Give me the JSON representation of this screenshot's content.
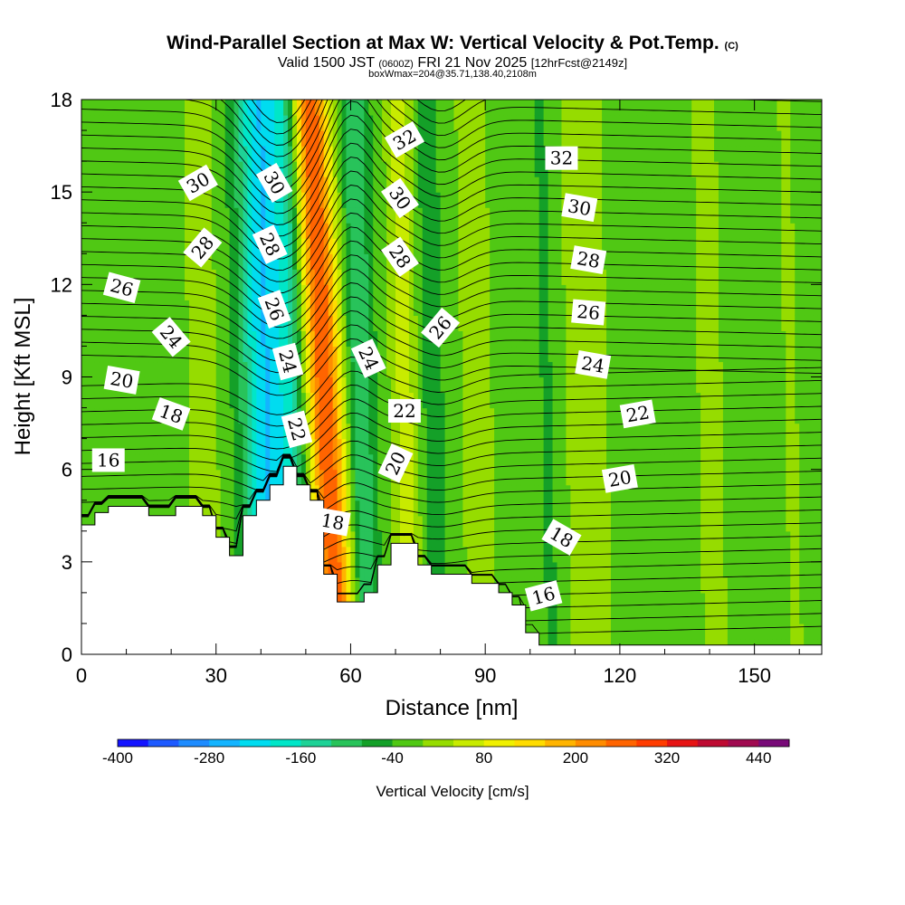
{
  "header": {
    "title": "Wind-Parallel Section at Max W: Vertical Velocity & Pot.Temp.",
    "title_tag": "(C)",
    "valid_prefix": "Valid 1500 JST",
    "valid_utc": "(0600Z)",
    "valid_date": "FRI 21 Nov 2025",
    "forecast": "[12hrFcst@2149z]",
    "box_info": "boxWmax=204@35.71,138.40,2108m"
  },
  "chart_data": {
    "type": "heatmap",
    "xlabel": "Distance [nm]",
    "ylabel": "Height [Kft MSL]",
    "xlim": [
      0,
      165
    ],
    "ylim": [
      0,
      18
    ],
    "xticks": [
      0,
      30,
      60,
      90,
      120,
      150
    ],
    "yticks": [
      0,
      3,
      6,
      9,
      12,
      15,
      18
    ],
    "colorbar": {
      "label": "Vertical Velocity [cm/s]",
      "min": -400,
      "max": 480,
      "step": 40,
      "tick_values": [
        -400,
        -280,
        -160,
        -40,
        80,
        200,
        320,
        440
      ],
      "colors": [
        "#1414ff",
        "#1e5aff",
        "#1e8cff",
        "#14b4ff",
        "#00dcf0",
        "#00e6c8",
        "#1ed296",
        "#28c35a",
        "#14a028",
        "#50c814",
        "#96dc00",
        "#c8eb00",
        "#f0f000",
        "#ffdc00",
        "#ffb400",
        "#ff8c00",
        "#ff6400",
        "#ff3c00",
        "#e61414",
        "#be0a32",
        "#a00a50",
        "#780a78"
      ]
    },
    "terrain_profile": {
      "distance_nm": [
        0,
        3,
        3,
        6,
        6,
        15,
        15,
        21,
        21,
        27,
        27,
        30,
        30,
        33,
        33,
        36,
        36,
        39,
        39,
        42,
        42,
        45,
        45,
        48,
        48,
        51,
        51,
        54,
        54,
        57,
        57,
        60,
        60,
        63,
        63,
        66,
        66,
        69,
        69,
        72,
        72,
        75,
        75,
        78,
        78,
        81,
        81,
        84,
        84,
        87,
        87,
        90,
        90,
        93,
        93,
        96,
        96,
        99,
        99,
        102,
        102,
        105,
        105,
        165
      ],
      "height_kft": [
        4.2,
        4.2,
        4.6,
        4.6,
        4.8,
        4.8,
        4.5,
        4.5,
        4.8,
        4.8,
        4.5,
        4.5,
        3.8,
        3.8,
        3.2,
        3.2,
        4.5,
        4.5,
        5.0,
        5.0,
        5.5,
        5.5,
        6.1,
        6.1,
        5.5,
        5.5,
        5.0,
        5.0,
        2.6,
        2.6,
        1.7,
        1.7,
        1.7,
        1.7,
        2.0,
        2.0,
        2.9,
        2.9,
        3.6,
        3.6,
        3.6,
        3.6,
        2.9,
        2.9,
        2.6,
        2.6,
        2.6,
        2.6,
        2.6,
        2.6,
        2.3,
        2.3,
        2.3,
        2.3,
        2.0,
        2.0,
        1.6,
        1.6,
        0.7,
        0.7,
        0.3,
        0.3,
        0.3,
        0.3
      ]
    },
    "vertical_velocity_bands": [
      {
        "center_nm": 27,
        "half_width_nm": 3,
        "w_cms": 60
      },
      {
        "center_nm": 41,
        "half_width_nm": 5,
        "w_cms": -220
      },
      {
        "center_nm": 47,
        "half_width_nm": 3,
        "w_cms": -90
      },
      {
        "center_nm": 54,
        "half_width_nm": 4,
        "w_cms": 300
      },
      {
        "center_nm": 62,
        "half_width_nm": 3,
        "w_cms": -100
      },
      {
        "center_nm": 72,
        "half_width_nm": 3,
        "w_cms": 80
      },
      {
        "center_nm": 78,
        "half_width_nm": 3,
        "w_cms": -40
      },
      {
        "center_nm": 88,
        "half_width_nm": 4,
        "w_cms": 40
      },
      {
        "center_nm": 104,
        "half_width_nm": 3,
        "w_cms": -30
      },
      {
        "center_nm": 112,
        "half_width_nm": 6,
        "w_cms": 40
      },
      {
        "center_nm": 140,
        "half_width_nm": 4,
        "w_cms": 30
      },
      {
        "center_nm": 158,
        "half_width_nm": 2,
        "w_cms": 30
      }
    ],
    "theta_contour_labels": [
      {
        "value": "16",
        "x_nm": 6,
        "y_kft": 6.3,
        "angle": 0
      },
      {
        "value": "18",
        "x_nm": 20,
        "y_kft": 7.8,
        "angle": 20
      },
      {
        "value": "20",
        "x_nm": 9,
        "y_kft": 8.9,
        "angle": 10
      },
      {
        "value": "24",
        "x_nm": 20,
        "y_kft": 10.3,
        "angle": 50
      },
      {
        "value": "26",
        "x_nm": 9,
        "y_kft": 11.9,
        "angle": 15
      },
      {
        "value": "28",
        "x_nm": 27,
        "y_kft": 13.2,
        "angle": -50
      },
      {
        "value": "30",
        "x_nm": 26,
        "y_kft": 15.3,
        "angle": -30
      },
      {
        "value": "30",
        "x_nm": 43,
        "y_kft": 15.3,
        "angle": 60
      },
      {
        "value": "28",
        "x_nm": 42,
        "y_kft": 13.3,
        "angle": 65
      },
      {
        "value": "26",
        "x_nm": 43,
        "y_kft": 11.2,
        "angle": 70
      },
      {
        "value": "24",
        "x_nm": 46,
        "y_kft": 9.5,
        "angle": 75
      },
      {
        "value": "22",
        "x_nm": 48,
        "y_kft": 7.3,
        "angle": 75
      },
      {
        "value": "18",
        "x_nm": 56,
        "y_kft": 4.3,
        "angle": 10
      },
      {
        "value": "32",
        "x_nm": 72,
        "y_kft": 16.7,
        "angle": -30
      },
      {
        "value": "30",
        "x_nm": 71,
        "y_kft": 14.8,
        "angle": 55
      },
      {
        "value": "28",
        "x_nm": 71,
        "y_kft": 12.9,
        "angle": 55
      },
      {
        "value": "24",
        "x_nm": 64,
        "y_kft": 9.6,
        "angle": 65
      },
      {
        "value": "22",
        "x_nm": 72,
        "y_kft": 7.9,
        "angle": 0
      },
      {
        "value": "20",
        "x_nm": 70,
        "y_kft": 6.2,
        "angle": -65
      },
      {
        "value": "26",
        "x_nm": 80,
        "y_kft": 10.6,
        "angle": -50
      },
      {
        "value": "32",
        "x_nm": 107,
        "y_kft": 16.1,
        "angle": 0
      },
      {
        "value": "30",
        "x_nm": 111,
        "y_kft": 14.5,
        "angle": 10
      },
      {
        "value": "28",
        "x_nm": 113,
        "y_kft": 12.8,
        "angle": 10
      },
      {
        "value": "26",
        "x_nm": 113,
        "y_kft": 11.1,
        "angle": 5
      },
      {
        "value": "24",
        "x_nm": 114,
        "y_kft": 9.4,
        "angle": 10
      },
      {
        "value": "22",
        "x_nm": 124,
        "y_kft": 7.8,
        "angle": -10
      },
      {
        "value": "20",
        "x_nm": 120,
        "y_kft": 5.7,
        "angle": -10
      },
      {
        "value": "18",
        "x_nm": 107,
        "y_kft": 3.8,
        "angle": 30
      },
      {
        "value": "16",
        "x_nm": 103,
        "y_kft": 1.9,
        "angle": -15
      }
    ]
  }
}
